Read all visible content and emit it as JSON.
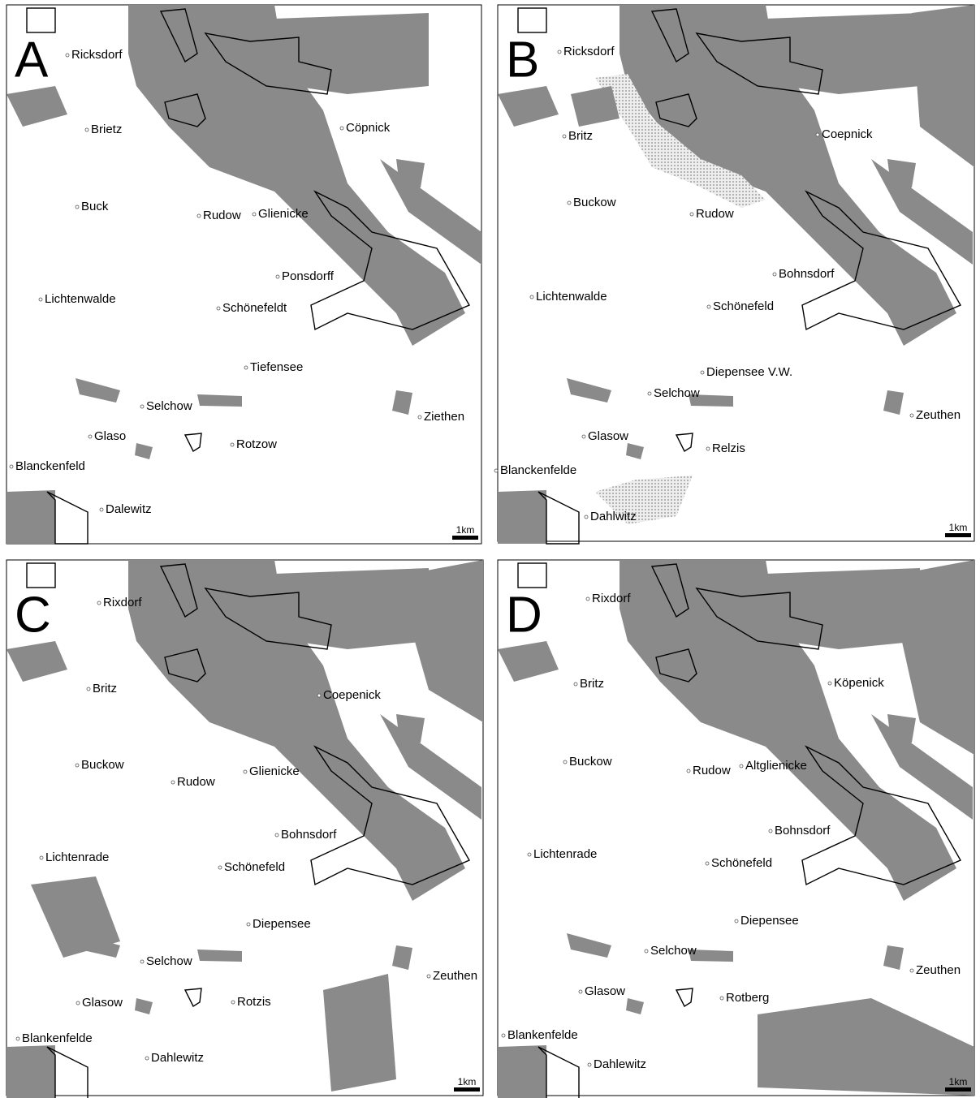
{
  "panels": [
    {
      "letter": "A",
      "scale": "1km",
      "places": [
        {
          "label": "Ricksdorf"
        },
        {
          "label": "Brietz"
        },
        {
          "label": "Cöpnick"
        },
        {
          "label": "Buck"
        },
        {
          "label": "Rudow"
        },
        {
          "label": "Glienicke"
        },
        {
          "label": "Ponsdorff"
        },
        {
          "label": "Lichtenwalde"
        },
        {
          "label": "Schönefeldt"
        },
        {
          "label": "Tiefensee"
        },
        {
          "label": "Selchow"
        },
        {
          "label": "Ziethen"
        },
        {
          "label": "Glaso"
        },
        {
          "label": "Rotzow"
        },
        {
          "label": "Blanckenfeld"
        },
        {
          "label": "Dalewitz"
        }
      ]
    },
    {
      "letter": "B",
      "scale": "1km",
      "places": [
        {
          "label": "Ricksdorf"
        },
        {
          "label": "Britz"
        },
        {
          "label": "Coepnick"
        },
        {
          "label": "Buckow"
        },
        {
          "label": "Rudow"
        },
        {
          "label": "Bohnsdorf"
        },
        {
          "label": "Lichtenwalde"
        },
        {
          "label": "Schönefeld"
        },
        {
          "label": "Diepensee V.W."
        },
        {
          "label": "Selchow"
        },
        {
          "label": "Zeuthen"
        },
        {
          "label": "Glasow"
        },
        {
          "label": "Relzis"
        },
        {
          "label": "Blanckenfelde"
        },
        {
          "label": "Dahlwitz"
        }
      ]
    },
    {
      "letter": "C",
      "scale": "1km",
      "places": [
        {
          "label": "Rixdorf"
        },
        {
          "label": "Britz"
        },
        {
          "label": "Coepenick"
        },
        {
          "label": "Buckow"
        },
        {
          "label": "Glienicke"
        },
        {
          "label": "Rudow"
        },
        {
          "label": "Bohnsdorf"
        },
        {
          "label": "Lichtenrade"
        },
        {
          "label": "Schönefeld"
        },
        {
          "label": "Diepensee"
        },
        {
          "label": "Selchow"
        },
        {
          "label": "Zeuthen"
        },
        {
          "label": "Glasow"
        },
        {
          "label": "Rotzis"
        },
        {
          "label": "Blankenfelde"
        },
        {
          "label": "Dahlewitz"
        }
      ]
    },
    {
      "letter": "D",
      "scale": "1km",
      "places": [
        {
          "label": "Rixdorf"
        },
        {
          "label": "Britz"
        },
        {
          "label": "Köpenick"
        },
        {
          "label": "Buckow"
        },
        {
          "label": "Rudow"
        },
        {
          "label": "Altglienicke"
        },
        {
          "label": "Bohnsdorf"
        },
        {
          "label": "Lichtenrade"
        },
        {
          "label": "Schönefeld"
        },
        {
          "label": "Diepensee"
        },
        {
          "label": "Selchow"
        },
        {
          "label": "Zeuthen"
        },
        {
          "label": "Glasow"
        },
        {
          "label": "Rotberg"
        },
        {
          "label": "Blankenfelde"
        },
        {
          "label": "Dahlewitz"
        }
      ]
    }
  ]
}
